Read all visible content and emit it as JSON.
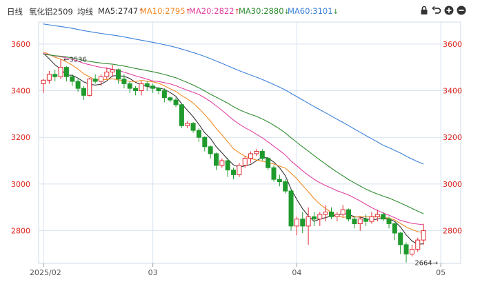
{
  "header": {
    "period": "日线",
    "symbol": "氧化铝2509",
    "avg_label": "均线",
    "ma": [
      {
        "label": "MA5:2747",
        "arrow": "↑",
        "color": "#333333"
      },
      {
        "label": "MA10:2795",
        "arrow": "↑",
        "color": "#f08a24"
      },
      {
        "label": "MA20:2822",
        "arrow": "↑",
        "color": "#e040a0"
      },
      {
        "label": "MA30:2880",
        "arrow": "↓",
        "color": "#2e8b2e"
      },
      {
        "label": "MA60:3101",
        "arrow": "↓",
        "color": "#3a7fd8"
      }
    ],
    "tools": [
      "lock-icon",
      "undo-icon",
      "zoom-in-icon",
      "zoom-out-icon"
    ]
  },
  "chart_data": {
    "type": "candlestick",
    "ylim": [
      2660,
      3700
    ],
    "yticks": [
      2800,
      3000,
      3200,
      3400,
      3600
    ],
    "xticks": [
      {
        "label": "2025/02",
        "index": 0
      },
      {
        "label": "03",
        "index": 19
      },
      {
        "label": "04",
        "index": 44
      },
      {
        "label": "05",
        "index": 69
      }
    ],
    "annotations": [
      {
        "text": "←3536",
        "index": 3,
        "value": 3536
      },
      {
        "text": "2664→",
        "index": 69,
        "value": 2664
      }
    ],
    "colors": {
      "up": "#e0262e",
      "down": "#1f9a2c"
    },
    "candles": [
      [
        3430,
        3445,
        3390,
        3450
      ],
      [
        3445,
        3470,
        3430,
        3485
      ],
      [
        3470,
        3460,
        3440,
        3490
      ],
      [
        3460,
        3500,
        3450,
        3536
      ],
      [
        3500,
        3460,
        3440,
        3505
      ],
      [
        3460,
        3440,
        3420,
        3470
      ],
      [
        3440,
        3410,
        3395,
        3450
      ],
      [
        3410,
        3380,
        3360,
        3420
      ],
      [
        3380,
        3450,
        3375,
        3455
      ],
      [
        3450,
        3440,
        3430,
        3470
      ],
      [
        3440,
        3460,
        3420,
        3470
      ],
      [
        3460,
        3480,
        3450,
        3500
      ],
      [
        3480,
        3490,
        3460,
        3510
      ],
      [
        3490,
        3450,
        3430,
        3495
      ],
      [
        3450,
        3430,
        3410,
        3470
      ],
      [
        3430,
        3410,
        3390,
        3440
      ],
      [
        3410,
        3400,
        3380,
        3420
      ],
      [
        3400,
        3430,
        3380,
        3440
      ],
      [
        3430,
        3420,
        3400,
        3440
      ],
      [
        3420,
        3410,
        3390,
        3430
      ],
      [
        3410,
        3400,
        3385,
        3415
      ],
      [
        3400,
        3370,
        3350,
        3410
      ],
      [
        3370,
        3360,
        3350,
        3375
      ],
      [
        3360,
        3340,
        3330,
        3370
      ],
      [
        3340,
        3250,
        3240,
        3345
      ],
      [
        3250,
        3260,
        3240,
        3270
      ],
      [
        3260,
        3230,
        3220,
        3265
      ],
      [
        3230,
        3200,
        3180,
        3240
      ],
      [
        3200,
        3160,
        3140,
        3205
      ],
      [
        3160,
        3130,
        3110,
        3165
      ],
      [
        3130,
        3080,
        3060,
        3135
      ],
      [
        3080,
        3100,
        3070,
        3110
      ],
      [
        3100,
        3060,
        3030,
        3110
      ],
      [
        3060,
        3040,
        3020,
        3070
      ],
      [
        3040,
        3080,
        3030,
        3090
      ],
      [
        3080,
        3110,
        3070,
        3120
      ],
      [
        3110,
        3130,
        3090,
        3140
      ],
      [
        3130,
        3140,
        3120,
        3150
      ],
      [
        3140,
        3110,
        3100,
        3150
      ],
      [
        3110,
        3070,
        3060,
        3115
      ],
      [
        3070,
        3020,
        3010,
        3080
      ],
      [
        3020,
        3010,
        2990,
        3040
      ],
      [
        3010,
        2970,
        2960,
        3020
      ],
      [
        2970,
        2820,
        2800,
        2980
      ],
      [
        2820,
        2850,
        2780,
        2860
      ],
      [
        2850,
        2820,
        2790,
        2880
      ],
      [
        2820,
        2860,
        2740,
        2900
      ],
      [
        2860,
        2850,
        2820,
        2880
      ],
      [
        2850,
        2870,
        2820,
        2880
      ],
      [
        2870,
        2880,
        2840,
        2910
      ],
      [
        2880,
        2860,
        2850,
        2900
      ],
      [
        2860,
        2870,
        2840,
        2880
      ],
      [
        2870,
        2890,
        2860,
        2910
      ],
      [
        2890,
        2850,
        2840,
        2895
      ],
      [
        2850,
        2830,
        2810,
        2860
      ],
      [
        2830,
        2850,
        2800,
        2860
      ],
      [
        2850,
        2840,
        2820,
        2870
      ],
      [
        2840,
        2860,
        2830,
        2880
      ],
      [
        2860,
        2870,
        2840,
        2890
      ],
      [
        2870,
        2850,
        2840,
        2880
      ],
      [
        2850,
        2830,
        2810,
        2860
      ],
      [
        2830,
        2790,
        2760,
        2835
      ],
      [
        2790,
        2740,
        2700,
        2795
      ],
      [
        2740,
        2700,
        2664,
        2750
      ],
      [
        2700,
        2720,
        2690,
        2740
      ],
      [
        2720,
        2760,
        2710,
        2770
      ],
      [
        2760,
        2800,
        2740,
        2830
      ]
    ],
    "series": [
      {
        "name": "MA5",
        "color": "#333333",
        "values": []
      },
      {
        "name": "MA10",
        "color": "#f08a24",
        "values": []
      },
      {
        "name": "MA20",
        "color": "#e040a0",
        "values": []
      },
      {
        "name": "MA30",
        "color": "#2e8b2e",
        "values": []
      },
      {
        "name": "MA60",
        "color": "#3a7fd8",
        "values": []
      }
    ]
  }
}
